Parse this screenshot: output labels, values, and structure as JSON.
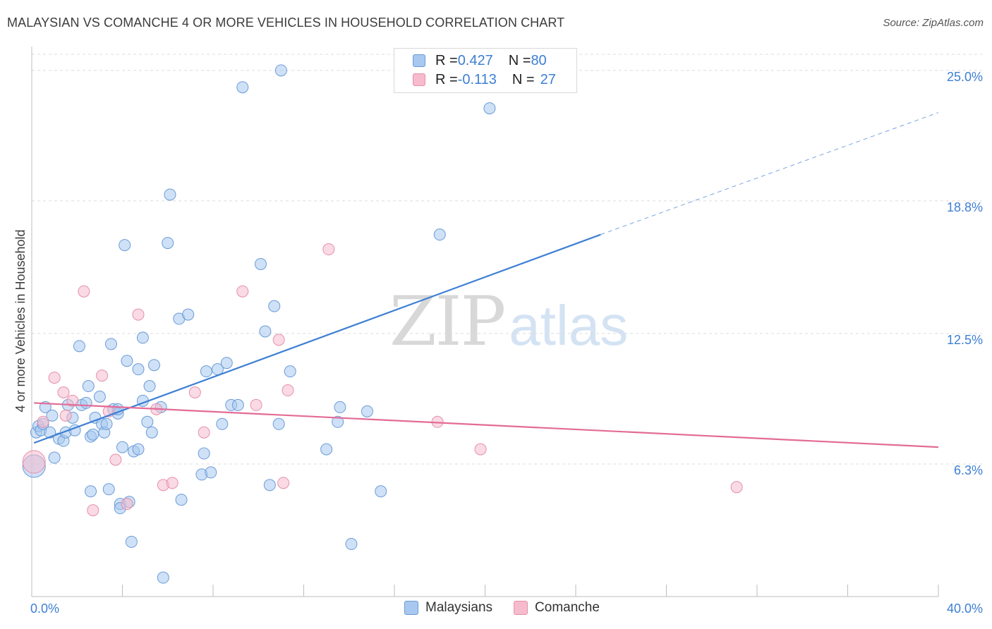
{
  "header": {
    "title": "MALAYSIAN VS COMANCHE 4 OR MORE VEHICLES IN HOUSEHOLD CORRELATION CHART",
    "source": "Source: ZipAtlas.com"
  },
  "watermark": {
    "zip": "ZIP",
    "atlas": "atlas"
  },
  "legend": {
    "rows": [
      {
        "r_label": "R = ",
        "r_value": "0.427",
        "n_label": "N = ",
        "n_value": "80",
        "color": "#a8c8ef"
      },
      {
        "r_label": "R = ",
        "r_value": "-0.113",
        "n_label": "N = ",
        "n_value": "27",
        "color": "#f6bccd"
      }
    ]
  },
  "bottom_legend": {
    "items": [
      {
        "label": "Malaysians",
        "color": "#a8c8ef"
      },
      {
        "label": "Comanche",
        "color": "#f6bccd"
      }
    ]
  },
  "chart_data": {
    "type": "scatter",
    "ylabel": "4 or more Vehicles in Household",
    "xlim": [
      0,
      40
    ],
    "ylim": [
      0,
      25.9
    ],
    "x_tick_labels": [
      {
        "value": 0,
        "label": "0.0%"
      },
      {
        "value": 40,
        "label": "40.0%"
      }
    ],
    "y_ticks": [
      {
        "value": 6.3,
        "label": "6.3%"
      },
      {
        "value": 12.5,
        "label": "12.5%"
      },
      {
        "value": 18.8,
        "label": "18.8%"
      },
      {
        "value": 25.0,
        "label": "25.0%"
      }
    ],
    "grid": "horizontal-dashed",
    "colors": {
      "malaysians": "#3d7fd3",
      "comanche": "#e36b96",
      "tick": "#3d7fd3"
    },
    "series": [
      {
        "name": "Malaysians",
        "color": "#a8c8ef",
        "stroke": "#6a9bd8",
        "trend": {
          "x0": 0.1,
          "y0": 7.3,
          "x1": 25.1,
          "y1": 17.2,
          "dash_to_x": 40.0,
          "dash_to_y": 23.0
        },
        "points": [
          [
            0.2,
            7.8
          ],
          [
            0.3,
            8.1
          ],
          [
            0.4,
            7.9
          ],
          [
            0.5,
            8.2
          ],
          [
            0.6,
            9.0
          ],
          [
            0.8,
            7.8
          ],
          [
            0.9,
            8.6
          ],
          [
            1.0,
            6.6
          ],
          [
            1.2,
            7.5
          ],
          [
            1.4,
            7.4
          ],
          [
            1.5,
            7.8
          ],
          [
            1.6,
            9.1
          ],
          [
            1.8,
            8.5
          ],
          [
            1.9,
            7.9
          ],
          [
            2.1,
            11.9
          ],
          [
            2.2,
            9.1
          ],
          [
            2.4,
            9.2
          ],
          [
            2.5,
            10.0
          ],
          [
            2.6,
            7.6
          ],
          [
            2.6,
            5.0
          ],
          [
            2.7,
            7.7
          ],
          [
            2.8,
            8.5
          ],
          [
            3.0,
            9.5
          ],
          [
            3.1,
            8.2
          ],
          [
            3.2,
            7.8
          ],
          [
            3.3,
            8.2
          ],
          [
            3.4,
            5.1
          ],
          [
            3.5,
            12.0
          ],
          [
            3.6,
            8.9
          ],
          [
            3.8,
            8.7
          ],
          [
            3.8,
            8.9
          ],
          [
            3.9,
            4.4
          ],
          [
            3.9,
            4.2
          ],
          [
            4.0,
            7.1
          ],
          [
            4.1,
            16.7
          ],
          [
            4.2,
            11.2
          ],
          [
            4.3,
            4.5
          ],
          [
            4.4,
            2.6
          ],
          [
            4.5,
            6.9
          ],
          [
            4.7,
            7.0
          ],
          [
            4.7,
            10.8
          ],
          [
            4.9,
            9.3
          ],
          [
            4.9,
            12.3
          ],
          [
            5.1,
            8.3
          ],
          [
            5.2,
            10.0
          ],
          [
            5.3,
            7.8
          ],
          [
            5.4,
            11.0
          ],
          [
            5.7,
            9.0
          ],
          [
            5.8,
            0.9
          ],
          [
            6.0,
            16.8
          ],
          [
            6.1,
            19.1
          ],
          [
            6.5,
            13.2
          ],
          [
            6.6,
            4.6
          ],
          [
            6.9,
            13.4
          ],
          [
            7.5,
            5.8
          ],
          [
            7.6,
            6.8
          ],
          [
            7.7,
            10.7
          ],
          [
            7.9,
            5.9
          ],
          [
            8.2,
            10.8
          ],
          [
            8.4,
            8.2
          ],
          [
            8.6,
            11.1
          ],
          [
            8.8,
            9.1
          ],
          [
            9.1,
            9.1
          ],
          [
            9.3,
            24.2
          ],
          [
            10.1,
            15.8
          ],
          [
            10.3,
            12.6
          ],
          [
            10.5,
            5.3
          ],
          [
            10.7,
            13.8
          ],
          [
            10.9,
            8.2
          ],
          [
            11.0,
            25.0
          ],
          [
            11.4,
            10.7
          ],
          [
            13.0,
            7.0
          ],
          [
            13.5,
            8.3
          ],
          [
            13.6,
            9.0
          ],
          [
            14.1,
            2.5
          ],
          [
            14.8,
            8.8
          ],
          [
            15.4,
            5.0
          ],
          [
            18.0,
            17.2
          ],
          [
            20.2,
            23.2
          ],
          [
            0.1,
            6.2
          ]
        ]
      },
      {
        "name": "Comanche",
        "color": "#f6bccd",
        "stroke": "#e590ab",
        "trend": {
          "x0": 0.1,
          "y0": 9.2,
          "x1": 40.0,
          "y1": 7.1
        },
        "points": [
          [
            0.1,
            6.4
          ],
          [
            0.5,
            8.3
          ],
          [
            1.0,
            10.4
          ],
          [
            1.5,
            8.6
          ],
          [
            1.4,
            9.7
          ],
          [
            1.8,
            9.3
          ],
          [
            2.3,
            14.5
          ],
          [
            2.7,
            4.1
          ],
          [
            3.1,
            10.5
          ],
          [
            3.4,
            8.8
          ],
          [
            3.7,
            6.5
          ],
          [
            4.2,
            4.4
          ],
          [
            4.7,
            13.4
          ],
          [
            5.5,
            8.9
          ],
          [
            5.8,
            5.3
          ],
          [
            6.2,
            5.4
          ],
          [
            7.2,
            9.7
          ],
          [
            7.6,
            7.8
          ],
          [
            9.3,
            14.5
          ],
          [
            9.9,
            9.1
          ],
          [
            10.9,
            12.2
          ],
          [
            11.1,
            5.4
          ],
          [
            11.3,
            9.8
          ],
          [
            13.1,
            16.5
          ],
          [
            17.9,
            8.3
          ],
          [
            19.8,
            7.0
          ],
          [
            31.1,
            5.2
          ]
        ]
      }
    ]
  }
}
